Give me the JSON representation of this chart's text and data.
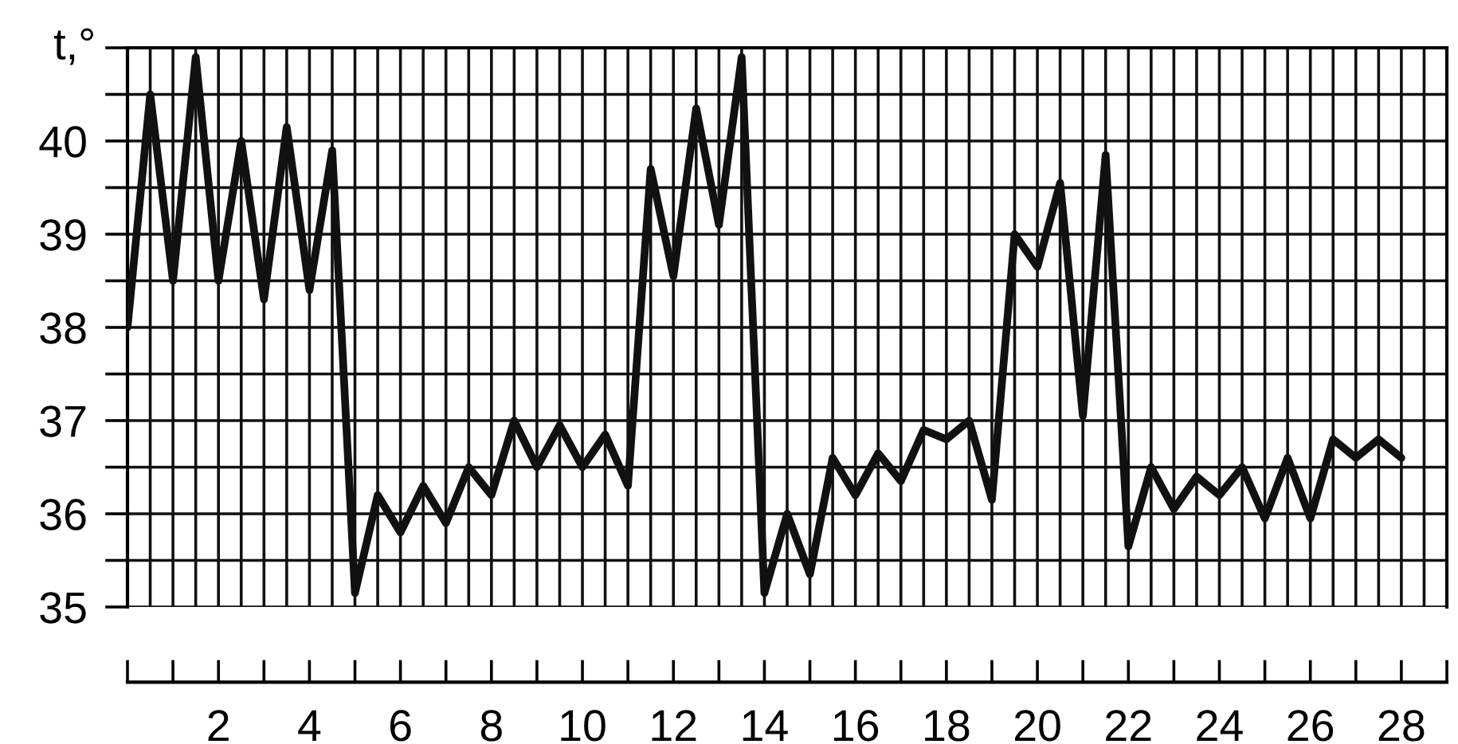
{
  "chart_data": {
    "type": "line",
    "ylabel": "t,°",
    "x": [
      0,
      0.5,
      1,
      1.5,
      2,
      2.5,
      3,
      3.5,
      4,
      4.5,
      5,
      5.5,
      6,
      6.5,
      7,
      7.5,
      8,
      8.5,
      9,
      9.5,
      10,
      10.5,
      11,
      11.5,
      12,
      12.5,
      13,
      13.5,
      14,
      14.5,
      15,
      15.5,
      16,
      16.5,
      17,
      17.5,
      18,
      18.5,
      19,
      19.5,
      20,
      20.5,
      21,
      21.5,
      22,
      22.5,
      23,
      23.5,
      24,
      24.5,
      25,
      25.5,
      26,
      26.5,
      27,
      27.5,
      28
    ],
    "series": [
      {
        "color": "#111111",
        "values": [
          38.0,
          40.5,
          38.5,
          40.9,
          38.5,
          40.0,
          38.3,
          40.15,
          38.4,
          39.9,
          35.15,
          36.2,
          35.8,
          36.3,
          35.9,
          36.5,
          36.2,
          37.0,
          36.5,
          36.95,
          36.5,
          36.85,
          36.3,
          39.7,
          38.55,
          40.35,
          39.1,
          40.9,
          35.15,
          36.0,
          35.35,
          36.6,
          36.2,
          36.65,
          36.35,
          36.9,
          36.8,
          37.0,
          36.15,
          39.0,
          38.65,
          39.55,
          37.05,
          39.85,
          35.65,
          36.5,
          36.05,
          36.4,
          36.2,
          36.5,
          35.95,
          36.6,
          35.95,
          36.8,
          36.6,
          36.8,
          36.6
        ]
      }
    ],
    "xlim": [
      0,
      29
    ],
    "ylim": [
      35,
      41
    ],
    "xticks": [
      {
        "value": 0,
        "label": null
      },
      {
        "value": 1,
        "label": null
      },
      2,
      {
        "value": 3,
        "label": null
      },
      4,
      {
        "value": 5,
        "label": null
      },
      6,
      {
        "value": 7,
        "label": null
      },
      8,
      {
        "value": 9,
        "label": null
      },
      10,
      {
        "value": 11,
        "label": null
      },
      12,
      {
        "value": 13,
        "label": null
      },
      14,
      {
        "value": 15,
        "label": null
      },
      16,
      {
        "value": 17,
        "label": null
      },
      18,
      {
        "value": 19,
        "label": null
      },
      20,
      {
        "value": 21,
        "label": null
      },
      22,
      {
        "value": 23,
        "label": null
      },
      24,
      {
        "value": 25,
        "label": null
      },
      26,
      {
        "value": 27,
        "label": null
      },
      28,
      {
        "value": 29,
        "label": null
      }
    ],
    "yticks": [
      35,
      {
        "value": 35.5,
        "label": null
      },
      36,
      {
        "value": 36.5,
        "label": null
      },
      37,
      {
        "value": 37.5,
        "label": null
      },
      38,
      {
        "value": 38.5,
        "label": null
      },
      39,
      {
        "value": 39.5,
        "label": null
      },
      40,
      {
        "value": 40.5,
        "label": null
      },
      {
        "value": 41,
        "label": null
      }
    ],
    "grid": true,
    "marker": "none",
    "line_style": "solid",
    "legend": false
  }
}
